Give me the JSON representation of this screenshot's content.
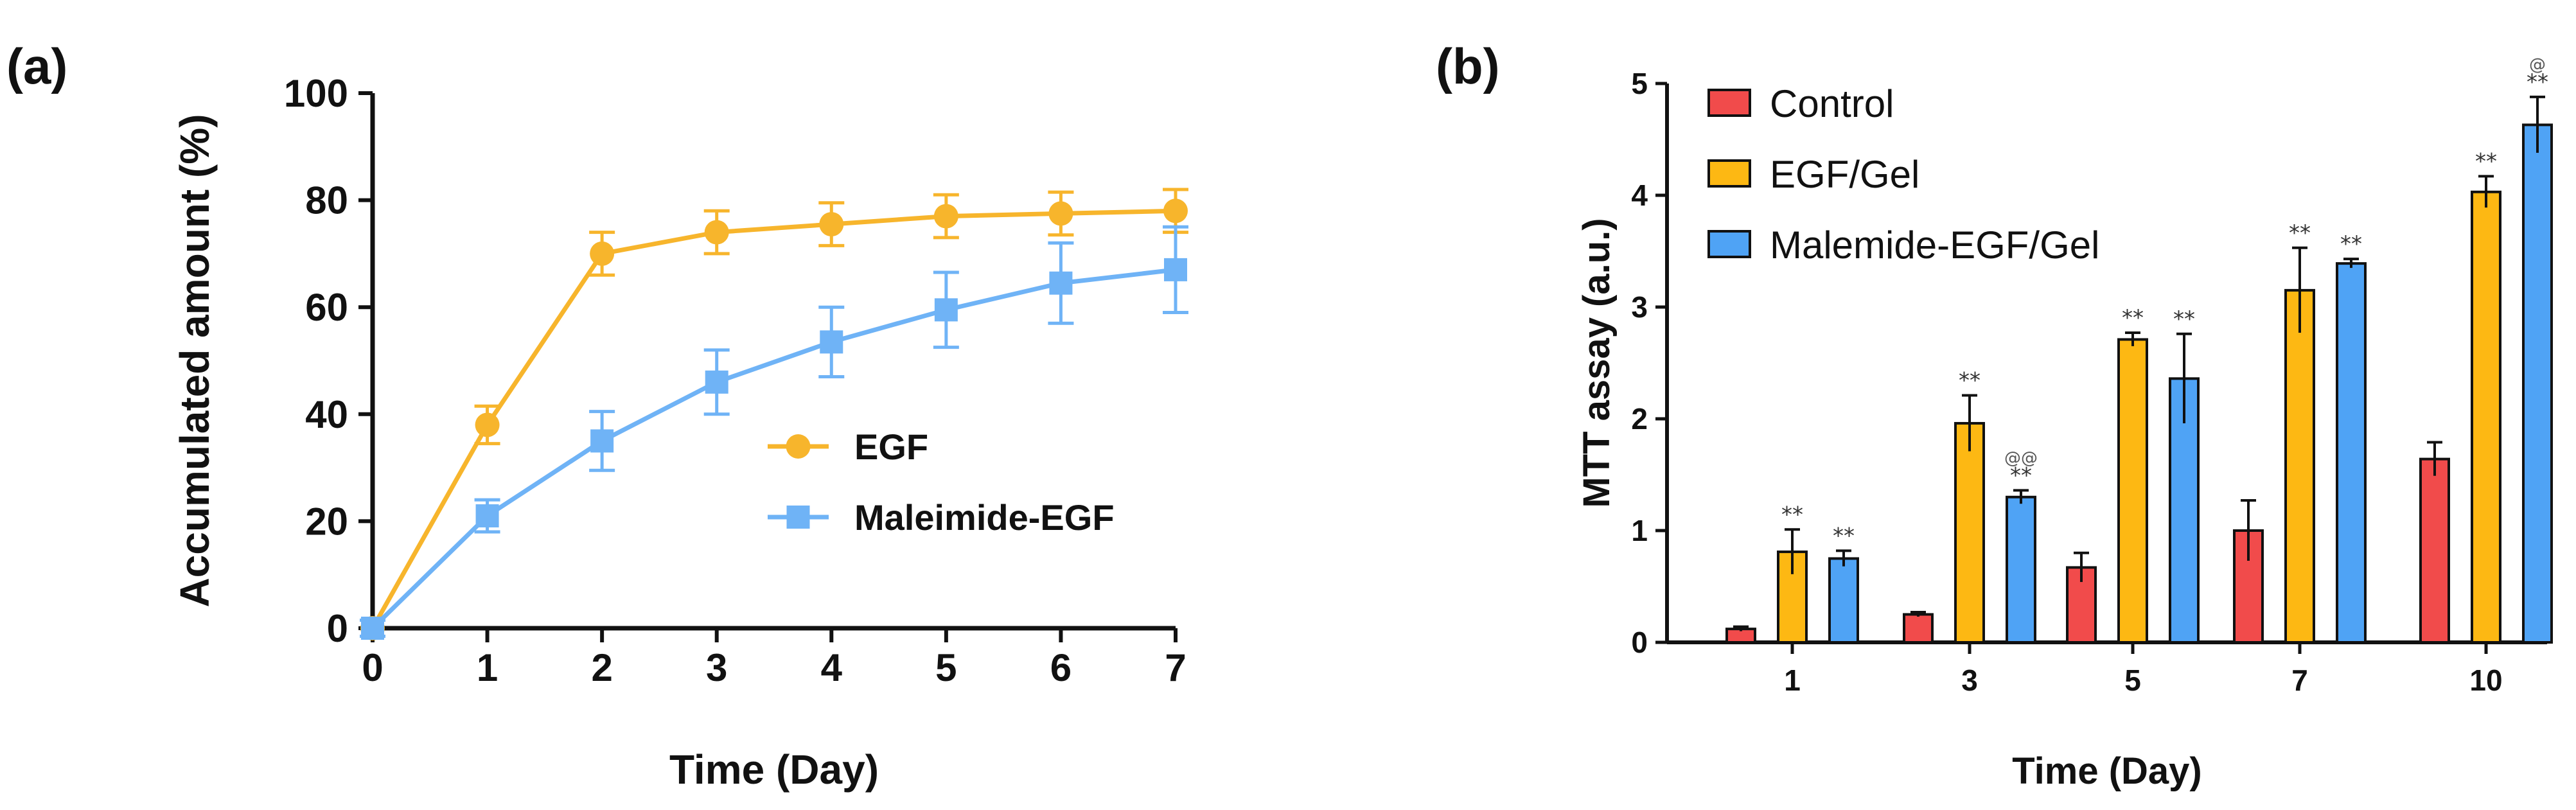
{
  "colors": {
    "egf": "#F7B52C",
    "maleimide": "#6FB3F6",
    "control_bar": "#F14B4B",
    "egfgel_bar": "#FDB813",
    "malgel_bar": "#4FA3F5",
    "axis": "#111111"
  },
  "chart_data": [
    {
      "panel": "(a)",
      "type": "line",
      "xlabel": "Time (Day)",
      "ylabel": "Accumulated amount (%)",
      "xlim": [
        0,
        7
      ],
      "ylim": [
        0,
        100
      ],
      "xticks": [
        0,
        1,
        2,
        3,
        4,
        5,
        6,
        7
      ],
      "yticks": [
        0,
        20,
        40,
        60,
        80,
        100
      ],
      "grid": false,
      "legend_position": "center-right",
      "series": [
        {
          "name": "EGF",
          "marker": "circle",
          "x": [
            0,
            1,
            2,
            3,
            4,
            5,
            6,
            7
          ],
          "y": [
            0,
            38,
            70,
            74,
            75.5,
            77,
            77.5,
            78
          ],
          "err": [
            1.5,
            3.5,
            4,
            4,
            4,
            4,
            4,
            4
          ]
        },
        {
          "name": "Maleimide-EGF",
          "marker": "square",
          "x": [
            0,
            1,
            2,
            3,
            4,
            5,
            6,
            7
          ],
          "y": [
            0,
            21,
            35,
            46,
            53.5,
            59.5,
            64.5,
            67
          ],
          "err": [
            1.5,
            3,
            5.5,
            6,
            6.5,
            7,
            7.5,
            8
          ]
        }
      ]
    },
    {
      "panel": "(b)",
      "type": "bar",
      "xlabel": "Time (Day)",
      "ylabel": "MTT assay (a.u.)",
      "ylim": [
        0,
        5
      ],
      "yticks": [
        0,
        1,
        2,
        3,
        4,
        5
      ],
      "grid": false,
      "legend_position": "top-left",
      "categories": [
        "1",
        "3",
        "5",
        "7",
        "10"
      ],
      "series": [
        {
          "name": "Control",
          "values": [
            0.12,
            0.25,
            0.67,
            1.0,
            1.64
          ],
          "err": [
            0.02,
            0.02,
            0.13,
            0.27,
            0.15
          ],
          "annotations": [
            "",
            "",
            "",
            "",
            ""
          ]
        },
        {
          "name": "EGF/Gel",
          "values": [
            0.81,
            1.96,
            2.71,
            3.15,
            4.03
          ],
          "err": [
            0.2,
            0.25,
            0.06,
            0.38,
            0.14
          ],
          "annotations": [
            "**",
            "**",
            "**",
            "**",
            "**"
          ]
        },
        {
          "name": "Malemide-EGF/Gel",
          "values": [
            0.75,
            1.3,
            2.36,
            3.39,
            4.63
          ],
          "err": [
            0.07,
            0.06,
            0.4,
            0.04,
            0.25
          ],
          "annotations": [
            "**",
            "**",
            "**",
            "**",
            "**"
          ],
          "annotations_top": [
            "",
            "@@",
            "",
            "",
            "@"
          ]
        }
      ]
    }
  ]
}
